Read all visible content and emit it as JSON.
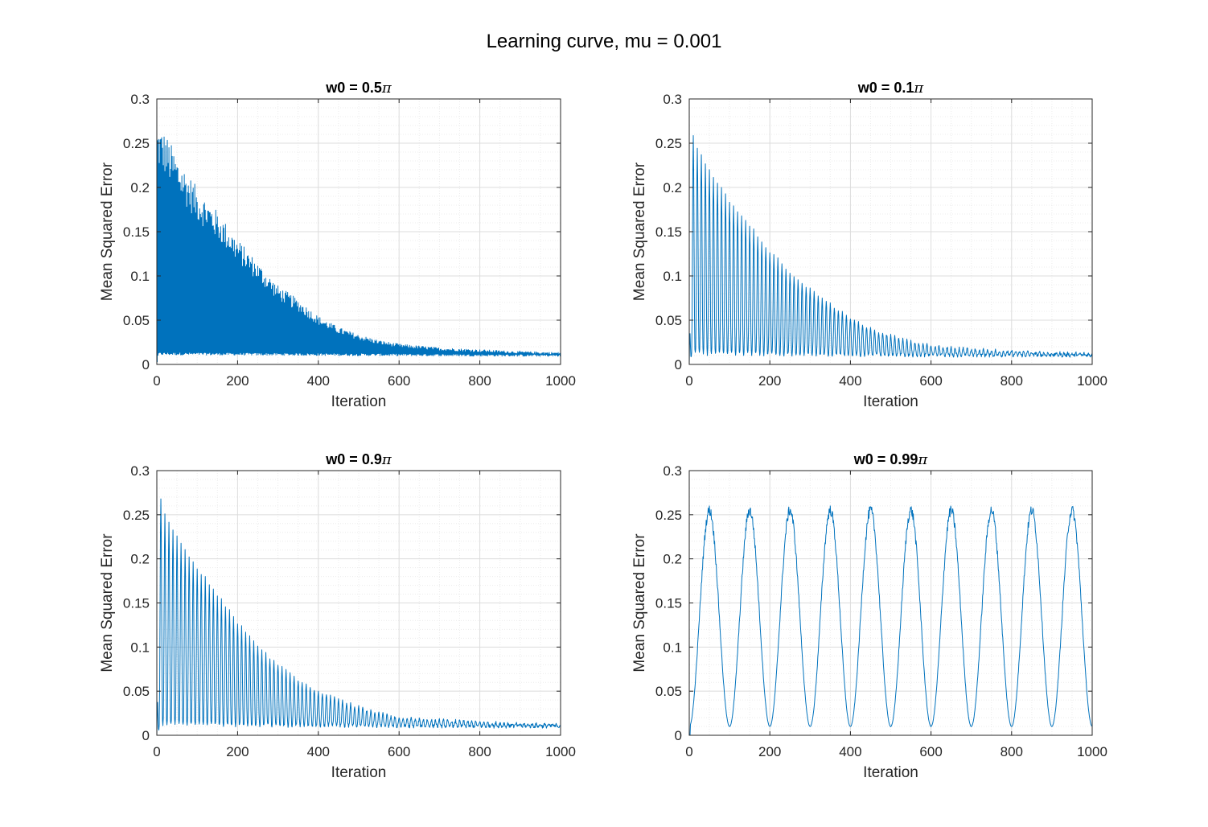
{
  "figure": {
    "suptitle": "Learning curve, mu = 0.001",
    "line_color": "#0072BD",
    "grid_color": "#dcdcdc",
    "minor_grid_color": "#ececec",
    "axis_color": "#262626"
  },
  "chart_data": [
    {
      "type": "line",
      "title": "w0 = 0.5π",
      "title_text": "w0 = 0.5",
      "title_symbol": "π",
      "xlabel": "Iteration",
      "ylabel": "Mean Squared Error",
      "xlim": [
        0,
        1000
      ],
      "ylim": [
        0,
        0.3
      ],
      "xticks": [
        0,
        200,
        400,
        600,
        800,
        1000
      ],
      "yticks": [
        0,
        0.05,
        0.1,
        0.15,
        0.2,
        0.25,
        0.3
      ],
      "xtick_labels": [
        "0",
        "200",
        "400",
        "600",
        "800",
        "1000"
      ],
      "ytick_labels": [
        "0",
        "0.05",
        "0.1",
        "0.15",
        "0.2",
        "0.25",
        "0.3"
      ],
      "grid": "major+minor",
      "series": [
        {
          "kind": "oscillating-decay-band",
          "x_step": 2,
          "period": 2,
          "upper_envelope": [
            [
              0,
              0.26
            ],
            [
              20,
              0.25
            ],
            [
              50,
              0.225
            ],
            [
              100,
              0.19
            ],
            [
              150,
              0.165
            ],
            [
              200,
              0.135
            ],
            [
              250,
              0.11
            ],
            [
              300,
              0.085
            ],
            [
              350,
              0.07
            ],
            [
              400,
              0.052
            ],
            [
              450,
              0.04
            ],
            [
              500,
              0.032
            ],
            [
              550,
              0.026
            ],
            [
              600,
              0.022
            ],
            [
              650,
              0.02
            ],
            [
              700,
              0.018
            ],
            [
              800,
              0.016
            ],
            [
              900,
              0.014
            ],
            [
              1000,
              0.013
            ]
          ],
          "lower_envelope": [
            [
              0,
              0.0
            ],
            [
              4,
              0.012
            ],
            [
              1000,
              0.01
            ]
          ]
        }
      ]
    },
    {
      "type": "line",
      "title": "w0 = 0.1π",
      "title_text": "w0 = 0.1",
      "title_symbol": "π",
      "xlabel": "Iteration",
      "ylabel": "Mean Squared Error",
      "xlim": [
        0,
        1000
      ],
      "ylim": [
        0,
        0.3
      ],
      "xticks": [
        0,
        200,
        400,
        600,
        800,
        1000
      ],
      "yticks": [
        0,
        0.05,
        0.1,
        0.15,
        0.2,
        0.25,
        0.3
      ],
      "xtick_labels": [
        "0",
        "200",
        "400",
        "600",
        "800",
        "1000"
      ],
      "ytick_labels": [
        "0",
        "0.05",
        "0.1",
        "0.15",
        "0.2",
        "0.25",
        "0.3"
      ],
      "grid": "major+minor",
      "series": [
        {
          "kind": "oscillating-decay",
          "x_step": 1,
          "period": 10,
          "upper_envelope": [
            [
              0,
              0.0
            ],
            [
              8,
              0.26
            ],
            [
              20,
              0.245
            ],
            [
              50,
              0.22
            ],
            [
              100,
              0.185
            ],
            [
              150,
              0.158
            ],
            [
              200,
              0.128
            ],
            [
              250,
              0.105
            ],
            [
              300,
              0.085
            ],
            [
              350,
              0.068
            ],
            [
              400,
              0.052
            ],
            [
              450,
              0.041
            ],
            [
              500,
              0.033
            ],
            [
              550,
              0.026
            ],
            [
              600,
              0.021
            ],
            [
              700,
              0.017
            ],
            [
              800,
              0.015
            ],
            [
              900,
              0.013
            ],
            [
              1000,
              0.012
            ]
          ],
          "lower_envelope": [
            [
              0,
              0.0
            ],
            [
              8,
              0.012
            ],
            [
              600,
              0.01
            ],
            [
              1000,
              0.01
            ]
          ]
        }
      ]
    },
    {
      "type": "line",
      "title": "w0 = 0.9π",
      "title_text": "w0 = 0.9",
      "title_symbol": "π",
      "xlabel": "Iteration",
      "ylabel": "Mean Squared Error",
      "xlim": [
        0,
        1000
      ],
      "ylim": [
        0,
        0.3
      ],
      "xticks": [
        0,
        200,
        400,
        600,
        800,
        1000
      ],
      "yticks": [
        0,
        0.05,
        0.1,
        0.15,
        0.2,
        0.25,
        0.3
      ],
      "xtick_labels": [
        "0",
        "200",
        "400",
        "600",
        "800",
        "1000"
      ],
      "ytick_labels": [
        "0",
        "0.05",
        "0.1",
        "0.15",
        "0.2",
        "0.25",
        "0.3"
      ],
      "grid": "major+minor",
      "series": [
        {
          "kind": "oscillating-decay",
          "x_step": 1,
          "period": 10,
          "upper_envelope": [
            [
              0,
              0.0
            ],
            [
              8,
              0.27
            ],
            [
              20,
              0.25
            ],
            [
              50,
              0.225
            ],
            [
              100,
              0.19
            ],
            [
              150,
              0.16
            ],
            [
              200,
              0.128
            ],
            [
              250,
              0.1
            ],
            [
              300,
              0.08
            ],
            [
              350,
              0.062
            ],
            [
              400,
              0.05
            ],
            [
              450,
              0.04
            ],
            [
              500,
              0.032
            ],
            [
              550,
              0.025
            ],
            [
              600,
              0.02
            ],
            [
              700,
              0.017
            ],
            [
              800,
              0.015
            ],
            [
              900,
              0.013
            ],
            [
              1000,
              0.012
            ]
          ],
          "lower_envelope": [
            [
              0,
              0.0
            ],
            [
              8,
              0.012
            ],
            [
              600,
              0.01
            ],
            [
              1000,
              0.01
            ]
          ]
        }
      ]
    },
    {
      "type": "line",
      "title": "w0 = 0.99π",
      "title_text": "w0 = 0.99",
      "title_symbol": "π",
      "xlabel": "Iteration",
      "ylabel": "Mean Squared Error",
      "xlim": [
        0,
        1000
      ],
      "ylim": [
        0,
        0.3
      ],
      "xticks": [
        0,
        200,
        400,
        600,
        800,
        1000
      ],
      "yticks": [
        0,
        0.05,
        0.1,
        0.15,
        0.2,
        0.25,
        0.3
      ],
      "xtick_labels": [
        "0",
        "200",
        "400",
        "600",
        "800",
        "1000"
      ],
      "ytick_labels": [
        "0",
        "0.05",
        "0.1",
        "0.15",
        "0.2",
        "0.25",
        "0.3"
      ],
      "grid": "major+minor",
      "series": [
        {
          "kind": "periodic-wave",
          "x_step": 1,
          "period": 100,
          "max": 0.255,
          "min": 0.01,
          "minima_at": [
            0,
            100,
            200,
            300,
            400,
            500,
            600,
            700,
            800,
            900
          ],
          "maxima_at": [
            50,
            155,
            255,
            355,
            460,
            560,
            655,
            760,
            860,
            960
          ]
        }
      ]
    }
  ]
}
